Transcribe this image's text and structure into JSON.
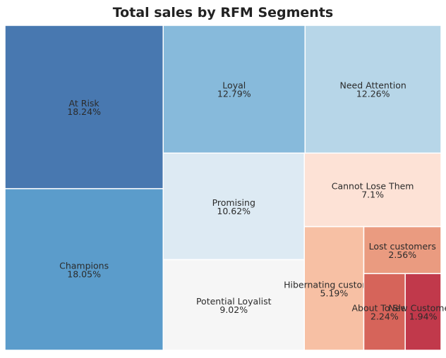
{
  "chart_data": {
    "type": "treemap",
    "title": "Total sales by RFM Segments",
    "segments": [
      {
        "name": "At Risk",
        "value": 18.24,
        "label": "18.24%",
        "color": "#4878b0"
      },
      {
        "name": "Champions",
        "value": 18.05,
        "label": "18.05%",
        "color": "#5b9ccb"
      },
      {
        "name": "Loyal",
        "value": 12.79,
        "label": "12.79%",
        "color": "#87badb"
      },
      {
        "name": "Need Attention",
        "value": 12.26,
        "label": "12.26%",
        "color": "#b7d6e8"
      },
      {
        "name": "Promising",
        "value": 10.62,
        "label": "10.62%",
        "color": "#ddeaf3"
      },
      {
        "name": "Potential Loyalist",
        "value": 9.02,
        "label": "9.02%",
        "color": "#f6f6f6"
      },
      {
        "name": "Cannot Lose Them",
        "value": 7.1,
        "label": "7.1%",
        "color": "#fde2d6"
      },
      {
        "name": "Hibernating customers",
        "value": 5.19,
        "label": "5.19%",
        "color": "#f7c0a4"
      },
      {
        "name": "Lost customers",
        "value": 2.56,
        "label": "2.56%",
        "color": "#ea9b80"
      },
      {
        "name": "About To Sleep",
        "value": 2.24,
        "label": "2.24%",
        "color": "#d6645a"
      },
      {
        "name": "New Customers",
        "value": 1.94,
        "label": "1.94%",
        "color": "#c1394b"
      }
    ]
  }
}
